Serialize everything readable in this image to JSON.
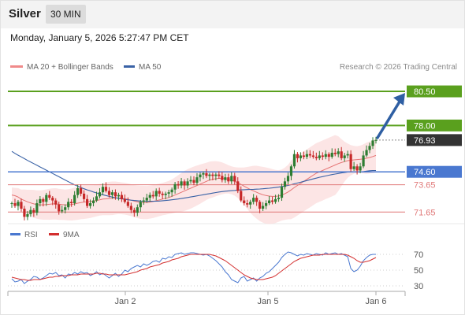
{
  "header": {
    "symbol": "Silver",
    "interval": "30 MIN"
  },
  "timestamp": "Monday, January 5, 2026 5:27:47 PM CET",
  "legend": {
    "ma20_label": "MA 20 + Bollinger Bands",
    "ma50_label": "MA 50",
    "credit": "Research © 2026 Trading Central"
  },
  "rsi_legend": {
    "rsi_label": "RSI",
    "ma9_label": "9MA"
  },
  "colors": {
    "up": "#2e7d32",
    "down": "#c62828",
    "band_fill": "#fbdcdc",
    "ma20": "#e57373",
    "ma50": "#3a62a6",
    "target": "#5aa01e",
    "pivot": "#4a78d0",
    "support": "#e07878",
    "arrow": "#2f5fa3",
    "last_price": "#333333",
    "rsi": "#4a78d0",
    "rsi_ma": "#d32f2f"
  },
  "chart_data": [
    {
      "type": "candlestick",
      "x_tick_labels": [
        "Jan 2",
        "Jan 5",
        "Jan 6"
      ],
      "ylim": [
        70.8,
        81.6
      ],
      "levels": [
        {
          "value": 80.5,
          "label": "80.50",
          "kind": "target"
        },
        {
          "value": 78.0,
          "label": "78.00",
          "kind": "target"
        },
        {
          "value": 76.93,
          "label": "76.93",
          "kind": "last"
        },
        {
          "value": 74.6,
          "label": "74.60",
          "kind": "pivot"
        },
        {
          "value": 73.65,
          "label": "73.65",
          "kind": "support"
        },
        {
          "value": 71.65,
          "label": "71.65",
          "kind": "support"
        }
      ],
      "closes": [
        72.3,
        72.1,
        72.4,
        71.9,
        71.3,
        71.5,
        71.8,
        71.6,
        72.3,
        72.6,
        72.4,
        72.9,
        72.7,
        72.5,
        72.2,
        71.7,
        71.8,
        72.0,
        72.4,
        72.3,
        72.9,
        73.4,
        73.0,
        72.6,
        72.1,
        72.3,
        72.5,
        72.8,
        73.1,
        73.5,
        73.2,
        72.9,
        73.1,
        72.8,
        72.9,
        72.6,
        72.4,
        72.1,
        71.8,
        71.6,
        72.0,
        72.4,
        72.5,
        72.7,
        72.9,
        72.8,
        73.2,
        73.0,
        72.9,
        73.0,
        73.1,
        73.3,
        73.7,
        73.6,
        73.9,
        73.6,
        73.9,
        74.0,
        73.8,
        74.2,
        74.4,
        74.5,
        74.3,
        74.4,
        74.3,
        74.4,
        74.3,
        74.0,
        74.2,
        73.9,
        74.3,
        73.9,
        73.2,
        72.5,
        72.3,
        72.2,
        72.4,
        72.7,
        72.4,
        71.9,
        72.1,
        72.3,
        72.5,
        72.4,
        72.6,
        72.7,
        73.5,
        73.9,
        74.3,
        75.0,
        75.9,
        75.6,
        75.8,
        75.7,
        75.9,
        75.8,
        75.7,
        75.6,
        75.8,
        75.7,
        75.9,
        75.7,
        76.0,
        75.9,
        76.1,
        75.6,
        75.8,
        75.9,
        74.8,
        75.0,
        74.7,
        75.0,
        75.8,
        76.2,
        76.5,
        76.9,
        76.93
      ],
      "ma20": [
        72.9,
        72.85,
        72.75,
        72.6,
        72.5,
        72.4,
        72.32,
        72.25,
        72.2,
        72.18,
        72.18,
        72.2,
        72.22,
        72.25,
        72.25,
        72.22,
        72.2,
        72.18,
        72.18,
        72.2,
        72.25,
        72.3,
        72.35,
        72.38,
        72.4,
        72.42,
        72.45,
        72.5,
        72.55,
        72.6,
        72.62,
        72.64,
        72.66,
        72.68,
        72.68,
        72.66,
        72.63,
        72.58,
        72.52,
        72.45,
        72.4,
        72.36,
        72.35,
        72.35,
        72.38,
        72.42,
        72.48,
        72.54,
        72.6,
        72.66,
        72.72,
        72.8,
        72.9,
        73.0,
        73.1,
        73.2,
        73.3,
        73.4,
        73.5,
        73.6,
        73.7,
        73.8,
        73.9,
        74.0,
        74.05,
        74.1,
        74.12,
        74.12,
        74.1,
        74.05,
        73.98,
        73.9,
        73.8,
        73.68,
        73.55,
        73.42,
        73.3,
        73.2,
        73.1,
        73.0,
        72.92,
        72.86,
        72.82,
        72.8,
        72.8,
        72.83,
        72.9,
        73.0,
        73.12,
        73.28,
        73.45,
        73.6,
        73.75,
        73.9,
        74.05,
        74.2,
        74.35,
        74.5,
        74.6,
        74.7,
        74.8,
        74.9,
        75.0,
        75.1,
        75.2,
        75.28,
        75.35,
        75.42,
        75.45,
        75.48,
        75.5,
        75.52,
        75.55,
        75.6,
        75.65,
        75.72,
        75.8
      ],
      "ma50": [
        76.1,
        75.95,
        75.82,
        75.7,
        75.57,
        75.44,
        75.32,
        75.2,
        75.08,
        74.96,
        74.84,
        74.72,
        74.6,
        74.48,
        74.36,
        74.24,
        74.12,
        74.0,
        73.88,
        73.76,
        73.65,
        73.55,
        73.45,
        73.36,
        73.28,
        73.2,
        73.12,
        73.05,
        72.98,
        72.92,
        72.86,
        72.8,
        72.75,
        72.7,
        72.66,
        72.62,
        72.58,
        72.55,
        72.52,
        72.5,
        72.48,
        72.46,
        72.45,
        72.44,
        72.44,
        72.44,
        72.45,
        72.46,
        72.48,
        72.5,
        72.52,
        72.55,
        72.58,
        72.61,
        72.64,
        72.68,
        72.72,
        72.76,
        72.8,
        72.84,
        72.88,
        72.92,
        72.96,
        73.0,
        73.04,
        73.08,
        73.12,
        73.15,
        73.18,
        73.2,
        73.22,
        73.24,
        73.26,
        73.28,
        73.29,
        73.3,
        73.31,
        73.32,
        73.33,
        73.34,
        73.36,
        73.38,
        73.4,
        73.42,
        73.45,
        73.48,
        73.52,
        73.56,
        73.6,
        73.66,
        73.72,
        73.78,
        73.84,
        73.9,
        73.96,
        74.02,
        74.08,
        74.14,
        74.2,
        74.25,
        74.3,
        74.35,
        74.4,
        74.44,
        74.48,
        74.52,
        74.55,
        74.58,
        74.6,
        74.6,
        74.6,
        74.6,
        74.62,
        74.65,
        74.68,
        74.7,
        74.7
      ]
    },
    {
      "type": "line",
      "title": "RSI",
      "ylim": [
        15,
        85
      ],
      "y_ticks": [
        70,
        50,
        30
      ],
      "series": [
        {
          "name": "RSI",
          "values": [
            39,
            35,
            36,
            38,
            33,
            36,
            38,
            42,
            41,
            38,
            40,
            43,
            46,
            45,
            47,
            43,
            44,
            40,
            45,
            44,
            47,
            45,
            48,
            46,
            47,
            43,
            45,
            48,
            44,
            46,
            43,
            40,
            43,
            46,
            42,
            45,
            50,
            48,
            52,
            54,
            56,
            54,
            58,
            56,
            58,
            61,
            62,
            60,
            65,
            64,
            67,
            66,
            70,
            71,
            72,
            70,
            71,
            72,
            72,
            71,
            70,
            69,
            70,
            68,
            65,
            62,
            58,
            54,
            48,
            44,
            38,
            36,
            34,
            40,
            42,
            36,
            38,
            40,
            36,
            40,
            42,
            46,
            48,
            52,
            56,
            60,
            66,
            70,
            73,
            72,
            70,
            68,
            70,
            69,
            71,
            70,
            69,
            71,
            70,
            69,
            72,
            70,
            71,
            72,
            70,
            71,
            69,
            67,
            52,
            48,
            50,
            55,
            62,
            66,
            69,
            70,
            70
          ]
        },
        {
          "name": "9MA",
          "values": [
            41,
            40,
            39,
            38,
            38,
            37,
            37,
            38,
            38,
            38,
            39,
            40,
            41,
            41,
            42,
            42,
            43,
            43,
            43,
            44,
            44,
            44,
            45,
            45,
            45,
            45,
            45,
            46,
            46,
            45,
            45,
            44,
            44,
            44,
            44,
            44,
            44,
            45,
            46,
            47,
            48,
            50,
            51,
            52,
            54,
            55,
            56,
            57,
            59,
            60,
            61,
            63,
            64,
            65,
            67,
            68,
            69,
            70,
            70,
            70,
            70,
            70,
            70,
            70,
            69,
            68,
            66,
            64,
            62,
            59,
            56,
            53,
            50,
            47,
            44,
            42,
            40,
            39,
            38,
            38,
            38,
            39,
            40,
            41,
            43,
            46,
            49,
            52,
            55,
            58,
            61,
            63,
            65,
            66,
            67,
            68,
            69,
            69,
            69,
            70,
            70,
            70,
            70,
            70,
            70,
            70,
            70,
            69,
            67,
            65,
            62,
            60,
            60,
            61,
            62,
            64,
            66
          ]
        }
      ]
    }
  ]
}
